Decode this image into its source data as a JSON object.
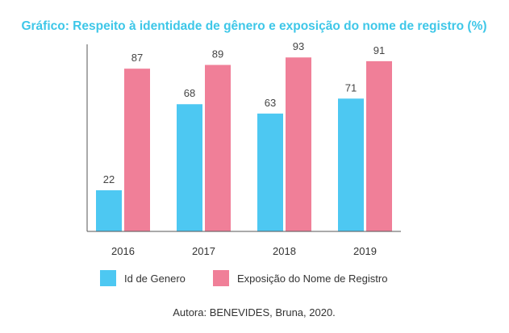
{
  "title": "Gráfico: Respeito à identidade de gênero e exposição do nome de registro (%)",
  "source": "Autora: BENEVIDES, Bruna, 2020.",
  "colors": {
    "title": "#3ec7e8",
    "series_1": "#4dc8f2",
    "series_2": "#f07f98",
    "axis": "#555555"
  },
  "chart_data": {
    "type": "bar",
    "categories": [
      "2016",
      "2017",
      "2018",
      "2019"
    ],
    "series": [
      {
        "name": "Id de Genero",
        "values": [
          22,
          68,
          63,
          71
        ]
      },
      {
        "name": "Exposição do Nome de Registro",
        "values": [
          87,
          89,
          93,
          91
        ]
      }
    ],
    "ylim": [
      0,
      100
    ],
    "grid": false,
    "legend_position": "bottom"
  }
}
